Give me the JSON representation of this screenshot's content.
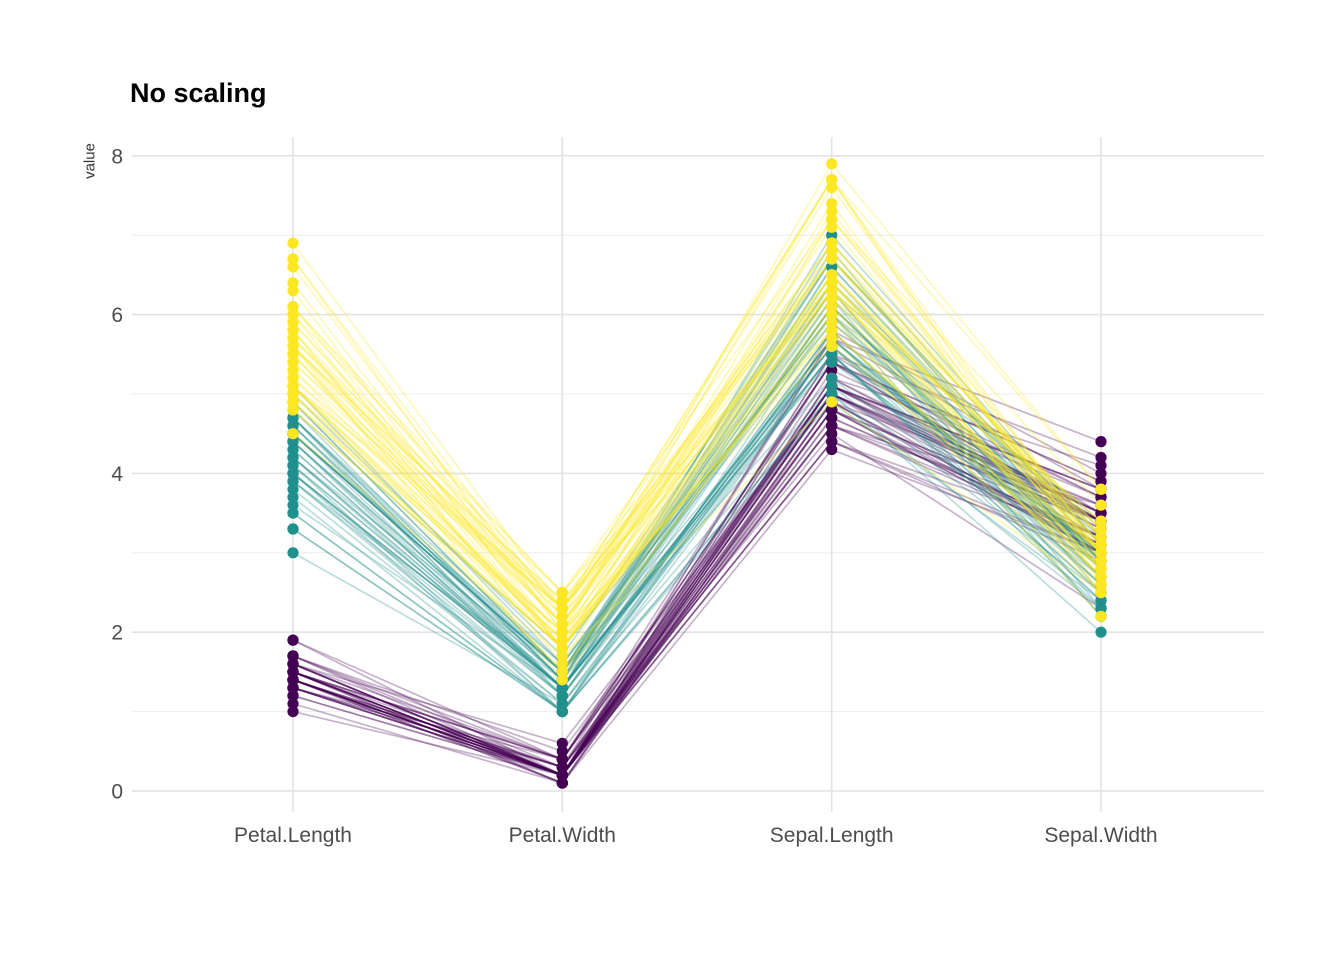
{
  "title": "No scaling",
  "y_axis": {
    "label": "value"
  },
  "colors": {
    "grid_major": "#E2E2E2",
    "grid_minor": "#EDEDED",
    "tick_label": "#4D4D4D",
    "axis_label": "#333333",
    "title": "#000000"
  },
  "chart_data": {
    "type": "line",
    "subtype": "parallel-coordinates",
    "title": "No scaling",
    "xlabel": "",
    "ylabel": "value",
    "categories": [
      "Petal.Length",
      "Petal.Width",
      "Sepal.Length",
      "Sepal.Width"
    ],
    "y_ticks": [
      0,
      2,
      4,
      6,
      8
    ],
    "y_minor_ticks": [
      1,
      3,
      5,
      7
    ],
    "ylim": [
      0,
      8
    ],
    "grid": true,
    "legend_position": "none",
    "line_opacity": 0.3,
    "series": [
      {
        "name": "group-dark-purple",
        "color": "#440154",
        "rows": [
          [
            1.4,
            0.2,
            5.1,
            3.5
          ],
          [
            1.4,
            0.2,
            4.9,
            3.0
          ],
          [
            1.3,
            0.2,
            4.7,
            3.2
          ],
          [
            1.5,
            0.2,
            4.6,
            3.1
          ],
          [
            1.4,
            0.2,
            5.0,
            3.6
          ],
          [
            1.7,
            0.4,
            5.4,
            3.9
          ],
          [
            1.4,
            0.3,
            4.6,
            3.4
          ],
          [
            1.5,
            0.2,
            5.0,
            3.4
          ],
          [
            1.4,
            0.2,
            4.4,
            2.9
          ],
          [
            1.5,
            0.1,
            4.9,
            3.1
          ],
          [
            1.5,
            0.2,
            5.4,
            3.7
          ],
          [
            1.6,
            0.2,
            4.8,
            3.4
          ],
          [
            1.4,
            0.1,
            4.8,
            3.0
          ],
          [
            1.1,
            0.1,
            4.3,
            3.0
          ],
          [
            1.2,
            0.2,
            5.8,
            4.0
          ],
          [
            1.5,
            0.4,
            5.7,
            4.4
          ],
          [
            1.3,
            0.4,
            5.4,
            3.9
          ],
          [
            1.4,
            0.3,
            5.1,
            3.5
          ],
          [
            1.7,
            0.3,
            5.7,
            3.8
          ],
          [
            1.5,
            0.3,
            5.1,
            3.8
          ],
          [
            1.7,
            0.2,
            5.4,
            3.4
          ],
          [
            1.5,
            0.4,
            5.1,
            3.7
          ],
          [
            1.0,
            0.2,
            4.6,
            3.6
          ],
          [
            1.7,
            0.5,
            5.1,
            3.3
          ],
          [
            1.9,
            0.2,
            4.8,
            3.4
          ],
          [
            1.6,
            0.2,
            5.0,
            3.0
          ],
          [
            1.6,
            0.4,
            5.0,
            3.4
          ],
          [
            1.5,
            0.2,
            5.2,
            3.5
          ],
          [
            1.4,
            0.2,
            5.2,
            3.4
          ],
          [
            1.6,
            0.2,
            4.7,
            3.2
          ],
          [
            1.6,
            0.2,
            4.8,
            3.1
          ],
          [
            1.5,
            0.4,
            5.4,
            3.4
          ],
          [
            1.5,
            0.1,
            5.2,
            4.1
          ],
          [
            1.4,
            0.2,
            5.5,
            4.2
          ],
          [
            1.5,
            0.2,
            4.9,
            3.1
          ],
          [
            1.2,
            0.2,
            5.0,
            3.2
          ],
          [
            1.3,
            0.2,
            5.5,
            3.5
          ],
          [
            1.4,
            0.1,
            4.9,
            3.6
          ],
          [
            1.3,
            0.2,
            4.4,
            3.0
          ],
          [
            1.5,
            0.2,
            5.1,
            3.4
          ],
          [
            1.3,
            0.3,
            5.0,
            3.5
          ],
          [
            1.3,
            0.3,
            4.5,
            2.3
          ],
          [
            1.3,
            0.2,
            4.4,
            3.2
          ],
          [
            1.6,
            0.6,
            5.0,
            3.5
          ],
          [
            1.9,
            0.4,
            5.1,
            3.8
          ],
          [
            1.4,
            0.3,
            4.8,
            3.0
          ],
          [
            1.6,
            0.2,
            5.1,
            3.8
          ],
          [
            1.4,
            0.2,
            4.6,
            3.2
          ],
          [
            1.5,
            0.2,
            5.3,
            3.7
          ],
          [
            1.4,
            0.2,
            5.0,
            3.3
          ]
        ]
      },
      {
        "name": "group-teal",
        "color": "#21908C",
        "rows": [
          [
            4.7,
            1.4,
            7.0,
            3.2
          ],
          [
            4.5,
            1.5,
            6.4,
            3.2
          ],
          [
            4.9,
            1.5,
            6.9,
            3.1
          ],
          [
            4.0,
            1.3,
            5.5,
            2.3
          ],
          [
            4.6,
            1.5,
            6.5,
            2.8
          ],
          [
            4.5,
            1.3,
            5.7,
            2.8
          ],
          [
            4.7,
            1.6,
            6.3,
            3.3
          ],
          [
            3.3,
            1.0,
            4.9,
            2.4
          ],
          [
            4.6,
            1.3,
            6.6,
            2.9
          ],
          [
            3.9,
            1.4,
            5.2,
            2.7
          ],
          [
            3.5,
            1.0,
            5.0,
            2.0
          ],
          [
            4.2,
            1.5,
            5.9,
            3.0
          ],
          [
            4.0,
            1.0,
            6.0,
            2.2
          ],
          [
            4.7,
            1.4,
            6.1,
            2.9
          ],
          [
            3.6,
            1.3,
            5.6,
            2.9
          ],
          [
            4.4,
            1.4,
            6.7,
            3.1
          ],
          [
            4.5,
            1.5,
            5.6,
            3.0
          ],
          [
            4.1,
            1.0,
            5.8,
            2.7
          ],
          [
            4.5,
            1.5,
            6.2,
            2.2
          ],
          [
            3.9,
            1.1,
            5.6,
            2.5
          ],
          [
            4.8,
            1.8,
            5.9,
            3.2
          ],
          [
            4.0,
            1.3,
            6.1,
            2.8
          ],
          [
            4.9,
            1.5,
            6.3,
            2.5
          ],
          [
            4.7,
            1.2,
            6.1,
            2.8
          ],
          [
            4.3,
            1.3,
            6.4,
            2.9
          ],
          [
            4.4,
            1.4,
            6.6,
            3.0
          ],
          [
            4.8,
            1.4,
            6.8,
            2.8
          ],
          [
            5.0,
            1.7,
            6.7,
            3.0
          ],
          [
            4.5,
            1.5,
            6.0,
            2.9
          ],
          [
            3.5,
            1.0,
            5.7,
            2.6
          ],
          [
            3.8,
            1.1,
            5.5,
            2.4
          ],
          [
            3.7,
            1.0,
            5.5,
            2.4
          ],
          [
            3.9,
            1.2,
            5.8,
            2.7
          ],
          [
            5.1,
            1.6,
            6.0,
            2.7
          ],
          [
            4.5,
            1.5,
            5.4,
            3.0
          ],
          [
            4.5,
            1.6,
            6.0,
            3.4
          ],
          [
            4.7,
            1.5,
            6.7,
            3.1
          ],
          [
            4.4,
            1.3,
            6.3,
            2.3
          ],
          [
            4.1,
            1.3,
            5.6,
            3.0
          ],
          [
            4.0,
            1.3,
            5.5,
            2.5
          ],
          [
            4.4,
            1.2,
            5.5,
            2.6
          ],
          [
            4.6,
            1.4,
            6.1,
            3.0
          ],
          [
            4.0,
            1.2,
            5.8,
            2.6
          ],
          [
            3.3,
            1.0,
            5.0,
            2.3
          ],
          [
            4.2,
            1.3,
            5.6,
            2.7
          ],
          [
            4.2,
            1.2,
            5.7,
            3.0
          ],
          [
            4.2,
            1.3,
            5.7,
            2.9
          ],
          [
            4.3,
            1.3,
            6.2,
            2.9
          ],
          [
            3.0,
            1.1,
            5.1,
            2.5
          ],
          [
            4.1,
            1.3,
            5.7,
            2.8
          ]
        ]
      },
      {
        "name": "group-yellow",
        "color": "#FDE725",
        "rows": [
          [
            6.0,
            2.5,
            6.3,
            3.3
          ],
          [
            5.1,
            1.9,
            5.8,
            2.7
          ],
          [
            5.9,
            2.1,
            7.1,
            3.0
          ],
          [
            5.6,
            1.8,
            6.3,
            2.9
          ],
          [
            5.8,
            2.2,
            6.5,
            3.0
          ],
          [
            6.6,
            2.1,
            7.6,
            3.0
          ],
          [
            4.5,
            1.7,
            4.9,
            2.5
          ],
          [
            6.3,
            1.8,
            7.3,
            2.9
          ],
          [
            5.8,
            1.8,
            6.7,
            2.5
          ],
          [
            6.1,
            2.5,
            7.2,
            3.6
          ],
          [
            5.1,
            2.0,
            6.5,
            3.2
          ],
          [
            5.3,
            1.9,
            6.4,
            2.7
          ],
          [
            5.5,
            2.1,
            6.8,
            3.0
          ],
          [
            5.0,
            2.0,
            5.7,
            2.5
          ],
          [
            5.1,
            2.4,
            5.8,
            2.8
          ],
          [
            5.3,
            2.3,
            6.4,
            3.2
          ],
          [
            5.5,
            1.8,
            6.5,
            3.0
          ],
          [
            6.7,
            2.2,
            7.7,
            3.8
          ],
          [
            6.9,
            2.3,
            7.7,
            2.6
          ],
          [
            5.0,
            1.5,
            6.0,
            2.2
          ],
          [
            5.7,
            2.3,
            6.9,
            3.2
          ],
          [
            4.9,
            2.0,
            5.6,
            2.8
          ],
          [
            6.7,
            2.0,
            7.7,
            2.8
          ],
          [
            4.9,
            1.8,
            6.3,
            2.7
          ],
          [
            5.7,
            2.1,
            6.7,
            3.3
          ],
          [
            6.0,
            1.8,
            7.2,
            3.2
          ],
          [
            4.8,
            1.8,
            6.2,
            2.8
          ],
          [
            4.9,
            1.8,
            6.1,
            3.0
          ],
          [
            5.6,
            2.1,
            6.4,
            2.8
          ],
          [
            5.8,
            1.6,
            7.2,
            3.0
          ],
          [
            6.1,
            1.9,
            7.4,
            2.8
          ],
          [
            6.4,
            2.0,
            7.9,
            3.8
          ],
          [
            5.6,
            2.2,
            6.4,
            2.8
          ],
          [
            5.1,
            1.5,
            6.3,
            2.8
          ],
          [
            5.6,
            1.4,
            6.1,
            2.6
          ],
          [
            6.1,
            2.3,
            7.7,
            3.0
          ],
          [
            5.6,
            2.4,
            6.3,
            3.4
          ],
          [
            5.5,
            1.8,
            6.4,
            3.1
          ],
          [
            4.8,
            1.8,
            6.0,
            3.0
          ],
          [
            5.4,
            2.1,
            6.9,
            3.1
          ],
          [
            5.6,
            2.4,
            6.7,
            3.1
          ],
          [
            5.1,
            2.3,
            6.9,
            3.1
          ],
          [
            5.1,
            1.9,
            5.8,
            2.7
          ],
          [
            5.9,
            2.3,
            6.8,
            3.2
          ],
          [
            5.7,
            2.5,
            6.7,
            3.3
          ],
          [
            5.2,
            2.3,
            6.7,
            3.0
          ],
          [
            5.0,
            1.9,
            6.3,
            2.5
          ],
          [
            5.2,
            2.0,
            6.5,
            3.0
          ],
          [
            5.4,
            2.3,
            6.2,
            3.4
          ],
          [
            5.1,
            1.8,
            5.9,
            3.0
          ]
        ]
      }
    ]
  }
}
